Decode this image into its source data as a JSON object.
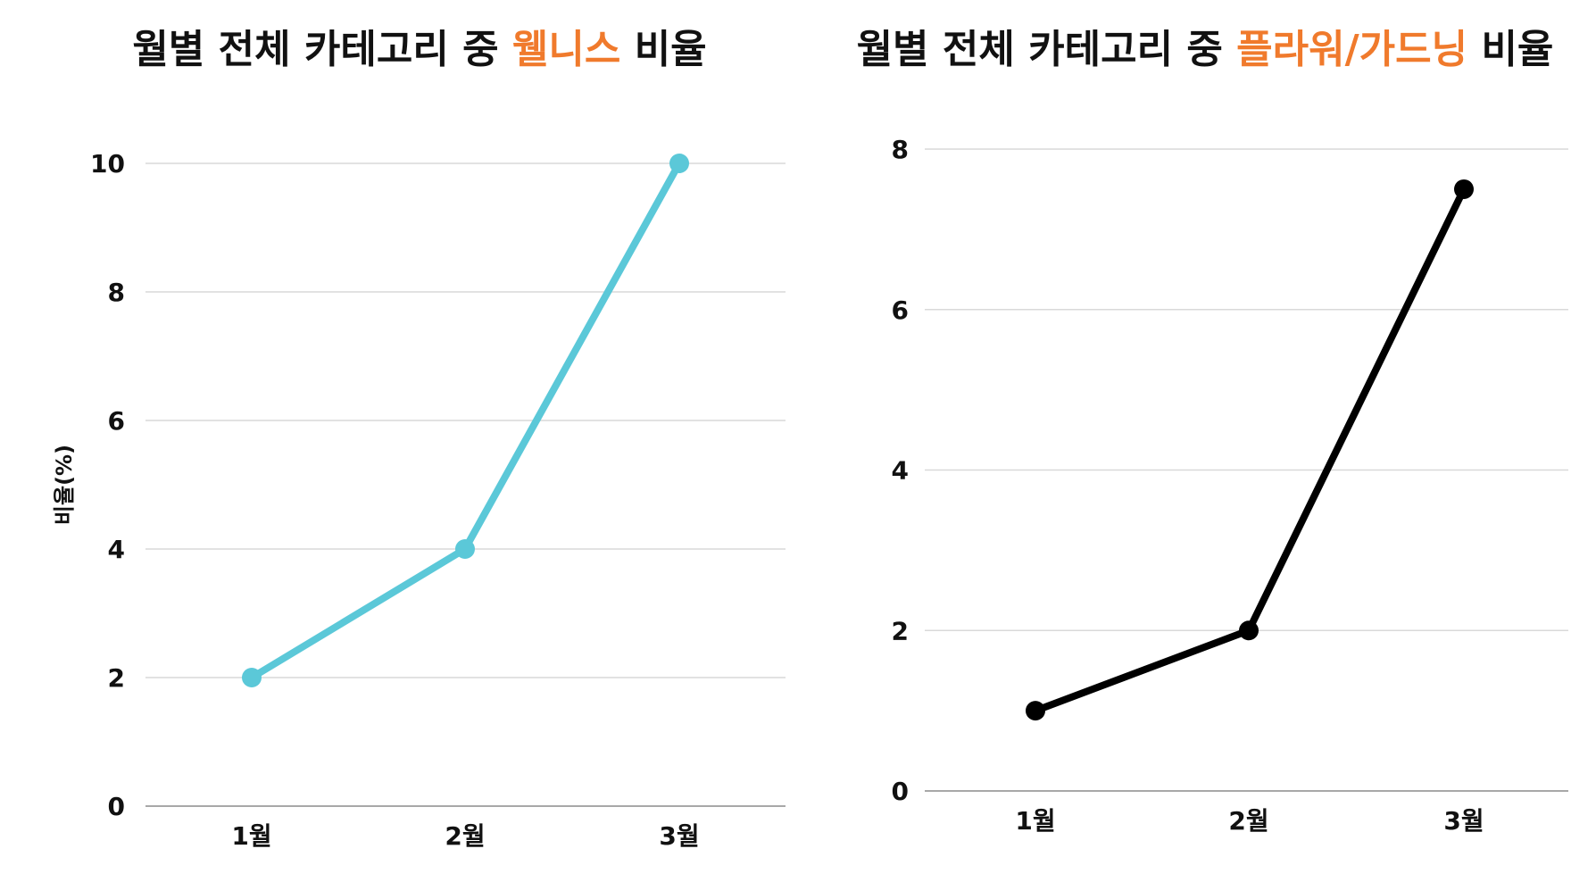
{
  "chart_data": [
    {
      "type": "line",
      "title_parts": [
        {
          "text": "월별 전체 카테고리 중 ",
          "highlight": false
        },
        {
          "text": "웰니스",
          "highlight": true
        },
        {
          "text": " 비율",
          "highlight": false
        }
      ],
      "title": "월별 전체 카테고리 중 웰니스 비율",
      "ylabel": "비율(%)",
      "xlabel": "",
      "categories": [
        "1월",
        "2월",
        "3월"
      ],
      "series": [
        {
          "values": [
            2,
            4,
            10
          ],
          "color": "#5bc8d8"
        }
      ],
      "ylim": [
        0,
        10
      ],
      "yticks": [
        0,
        2,
        4,
        6,
        8,
        10
      ],
      "grid": true
    },
    {
      "type": "line",
      "title_parts": [
        {
          "text": "월별 전체 카테고리 중 ",
          "highlight": false
        },
        {
          "text": "플라워/가드닝",
          "highlight": true
        },
        {
          "text": " 비율",
          "highlight": false
        }
      ],
      "title": "월별 전체 카테고리 중 플라워/가드닝 비율",
      "ylabel": "",
      "xlabel": "",
      "categories": [
        "1월",
        "2월",
        "3월"
      ],
      "series": [
        {
          "values": [
            1,
            2,
            7.5
          ],
          "color": "#000000"
        }
      ],
      "ylim": [
        0,
        8
      ],
      "yticks": [
        0,
        2,
        4,
        6,
        8
      ],
      "grid": true
    }
  ],
  "colors": {
    "highlight": "#f07a2c",
    "text": "#111111",
    "grid": "#d9d9d9",
    "axis": "#8c8c8c"
  }
}
